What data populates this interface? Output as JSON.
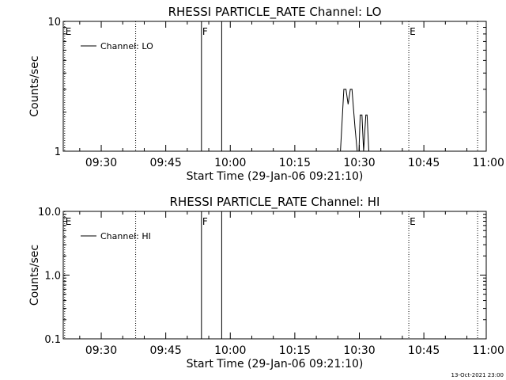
{
  "footer": {
    "timestamp": "13-Oct-2021 23:00"
  },
  "chart_data": [
    {
      "type": "line",
      "title": "RHESSI PARTICLE_RATE Channel: LO",
      "xlabel": "Start Time (29-Jan-06 09:21:10)",
      "ylabel": "Counts/sec",
      "y_scale": "log",
      "ylim": [
        1,
        10
      ],
      "y_ticks": [
        {
          "value": 1,
          "label": "1"
        },
        {
          "value": 10,
          "label": "10"
        }
      ],
      "xlim_min": [
        21.17,
        119.5
      ],
      "x_ticks": [
        {
          "min": 30,
          "label": "09:30"
        },
        {
          "min": 45,
          "label": "09:45"
        },
        {
          "min": 60,
          "label": "10:00"
        },
        {
          "min": 75,
          "label": "10:15"
        },
        {
          "min": 90,
          "label": "10:30"
        },
        {
          "min": 105,
          "label": "10:45"
        },
        {
          "min": 120,
          "label": "11:00"
        }
      ],
      "x_minor_step_min": 5,
      "legend": {
        "position": "top-left",
        "entries": [
          "Channel: LO"
        ]
      },
      "markers": [
        {
          "min": 21.5,
          "label": "E",
          "style": "dotted"
        },
        {
          "min": 38.0,
          "label": "",
          "style": "dotted"
        },
        {
          "min": 53.3,
          "label": "F",
          "style": "solid"
        },
        {
          "min": 58.0,
          "label": "",
          "style": "solid"
        },
        {
          "min": 101.5,
          "label": "E",
          "style": "dotted"
        },
        {
          "min": 117.5,
          "label": "",
          "style": "dotted"
        }
      ],
      "series": [
        {
          "name": "Channel: LO",
          "x": [
            85.6,
            85.9,
            86.4,
            86.9,
            87.4,
            87.9,
            88.3,
            88.6,
            89.0,
            89.5,
            89.9,
            90.2,
            90.6,
            91.0,
            91.5,
            91.8,
            92.2
          ],
          "y": [
            1,
            1.5,
            3,
            3,
            2.3,
            3,
            3,
            2.2,
            1.5,
            1,
            1,
            1.9,
            1.9,
            1,
            1.9,
            1.9,
            1
          ]
        }
      ]
    },
    {
      "type": "line",
      "title": "RHESSI PARTICLE_RATE Channel: HI",
      "xlabel": "Start Time (29-Jan-06 09:21:10)",
      "ylabel": "Counts/sec",
      "y_scale": "log",
      "ylim": [
        0.1,
        10
      ],
      "y_ticks": [
        {
          "value": 0.1,
          "label": "0.1"
        },
        {
          "value": 1,
          "label": "1.0"
        },
        {
          "value": 10,
          "label": "10.0"
        }
      ],
      "xlim_min": [
        21.17,
        119.5
      ],
      "x_ticks": [
        {
          "min": 30,
          "label": "09:30"
        },
        {
          "min": 45,
          "label": "09:45"
        },
        {
          "min": 60,
          "label": "10:00"
        },
        {
          "min": 75,
          "label": "10:15"
        },
        {
          "min": 90,
          "label": "10:30"
        },
        {
          "min": 105,
          "label": "10:45"
        },
        {
          "min": 120,
          "label": "11:00"
        }
      ],
      "x_minor_step_min": 5,
      "legend": {
        "position": "top-left",
        "entries": [
          "Channel: HI"
        ]
      },
      "markers": [
        {
          "min": 21.5,
          "label": "E",
          "style": "dotted"
        },
        {
          "min": 38.0,
          "label": "",
          "style": "dotted"
        },
        {
          "min": 53.3,
          "label": "F",
          "style": "solid"
        },
        {
          "min": 58.0,
          "label": "",
          "style": "solid"
        },
        {
          "min": 101.5,
          "label": "E",
          "style": "dotted"
        },
        {
          "min": 117.5,
          "label": "",
          "style": "dotted"
        }
      ],
      "series": [
        {
          "name": "Channel: HI",
          "x": [],
          "y": []
        }
      ]
    }
  ]
}
